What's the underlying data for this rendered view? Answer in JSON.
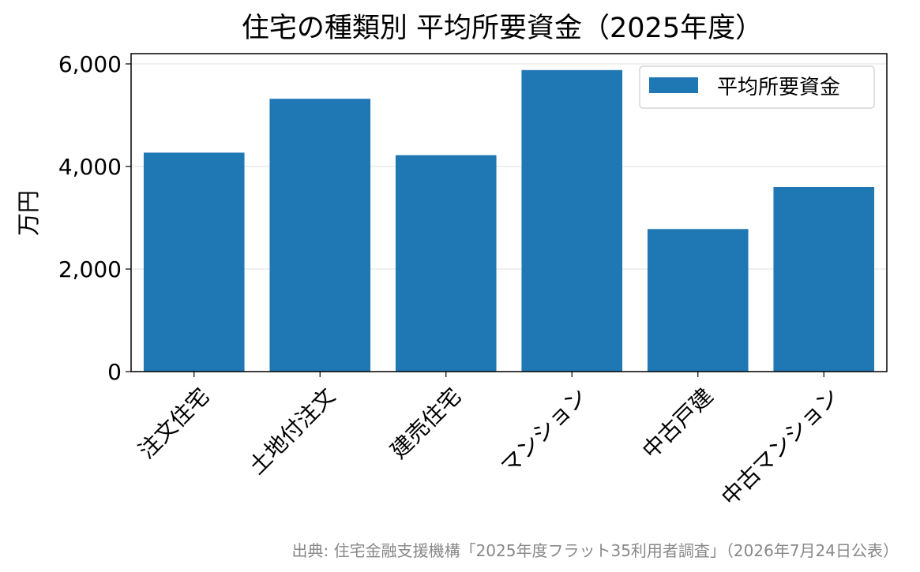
{
  "chart_data": {
    "type": "bar",
    "title": "住宅の種類別 平均所要資金（2025年度）",
    "ylabel": "万円",
    "xlabel": "",
    "categories": [
      "注文住宅",
      "土地付注文",
      "建売住宅",
      "マンション",
      "中古戸建",
      "中古マンション"
    ],
    "series": [
      {
        "name": "平均所要資金",
        "values": [
          4270,
          5320,
          4220,
          5880,
          2780,
          3600
        ],
        "color": "#1f77b4"
      }
    ],
    "ylim": [
      0,
      6200
    ],
    "yticks": [
      0,
      2000,
      4000,
      6000
    ],
    "ytick_labels": [
      "0",
      "2,000",
      "4,000",
      "6,000"
    ],
    "grid": "y",
    "legend_position": "top-right"
  },
  "footer": {
    "source": "出典: 住宅金融支援機構「2025年度フラット35利用者調査」（2026年7月24日公表）"
  }
}
